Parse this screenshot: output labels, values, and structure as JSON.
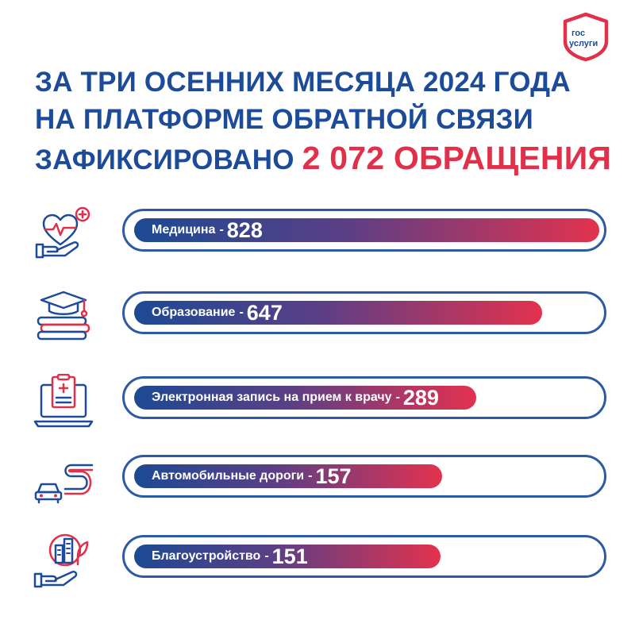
{
  "logo": {
    "line1": "гос",
    "line2": "услуги",
    "frame_color": "#e0304a",
    "text_color": "#1c4b9a"
  },
  "heading": {
    "line1": "ЗА ТРИ ОСЕННИХ МЕСЯЦА 2024 ГОДА",
    "line2": "НА ПЛАТФОРМЕ ОБРАТНОЙ СВЯЗИ",
    "line3_prefix": "ЗАФИКСИРОВАНО",
    "line3_highlight": "2 072 ОБРАЩЕНИЯ"
  },
  "colors": {
    "primary": "#1c4b9a",
    "accent": "#e0304a",
    "bar_start": "#1c4a93",
    "bar_end": "#e3324e"
  },
  "chart_data": {
    "type": "bar",
    "orientation": "horizontal",
    "categories": [
      "Медицина",
      "Образование",
      "Электронная запись на прием к врачу",
      "Автомобильные дороги",
      "Благоустройство"
    ],
    "values": [
      828,
      647,
      289,
      157,
      151
    ],
    "icons": [
      "heart-hand-icon",
      "graduation-books-icon",
      "laptop-clipboard-icon",
      "car-road-icon",
      "city-hand-icon"
    ],
    "title": "",
    "xlabel": "",
    "ylabel": ""
  }
}
